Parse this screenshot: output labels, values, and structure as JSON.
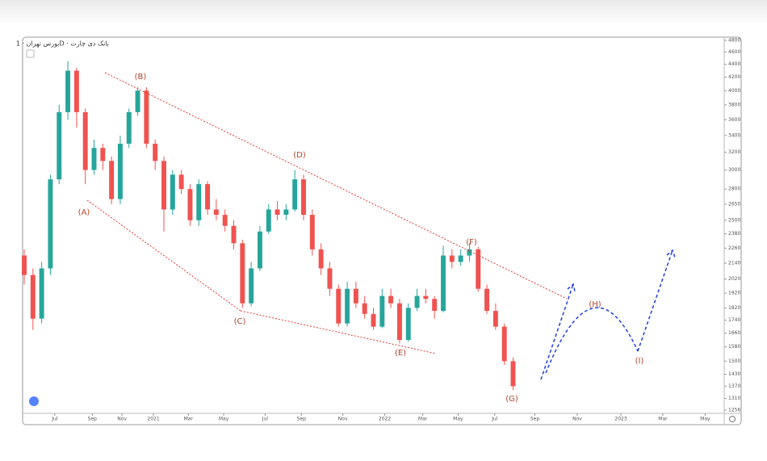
{
  "chart_data": {
    "type": "candlestick",
    "title": "بورس تهران · 1D · بانک دی چارت",
    "log_scale": true,
    "up_color": "#26a69a",
    "down_color": "#ef5350",
    "x": [
      0,
      2,
      4,
      6,
      8,
      10,
      12,
      14,
      16,
      18,
      20,
      22,
      24,
      26,
      28,
      30,
      32,
      34,
      36,
      38,
      40,
      42,
      44,
      46,
      48,
      50,
      52,
      54,
      56,
      58,
      60,
      62,
      64,
      66,
      68,
      70,
      72,
      74,
      76,
      78,
      80,
      82,
      84,
      86,
      88,
      90,
      92,
      94,
      96,
      98,
      100,
      102,
      104,
      106,
      108,
      110,
      112
    ],
    "open": [
      2200,
      2050,
      1750,
      2100,
      2900,
      3700,
      4300,
      3700,
      3000,
      3250,
      3100,
      2700,
      3300,
      3700,
      4000,
      3300,
      3100,
      2600,
      2950,
      2800,
      2500,
      2850,
      2600,
      2550,
      2450,
      2300,
      1850,
      2100,
      2400,
      2600,
      2550,
      2600,
      2900,
      2550,
      2250,
      2100,
      1950,
      1720,
      1950,
      1850,
      1780,
      1700,
      1900,
      1850,
      1620,
      1820,
      1900,
      1880,
      1800,
      2200,
      2150,
      2200,
      2250,
      1950,
      1800,
      1700,
      1500
    ],
    "high": [
      2250,
      2100,
      2150,
      2950,
      3800,
      4450,
      4350,
      3750,
      3350,
      3300,
      3150,
      3400,
      3750,
      4050,
      4050,
      3350,
      3150,
      3000,
      3000,
      2850,
      2900,
      2880,
      2700,
      2600,
      2500,
      2330,
      2150,
      2450,
      2650,
      2680,
      2650,
      3000,
      2950,
      2600,
      2300,
      2150,
      1980,
      2000,
      2000,
      1900,
      1820,
      1950,
      1950,
      1880,
      1850,
      1950,
      1950,
      1900,
      2280,
      2250,
      2250,
      2300,
      2270,
      1980,
      1850,
      1720,
      1520
    ],
    "low": [
      1980,
      1680,
      1720,
      2050,
      2850,
      3600,
      3500,
      2850,
      2950,
      3000,
      2650,
      2650,
      3250,
      3650,
      3250,
      3000,
      2400,
      2550,
      2750,
      2450,
      2450,
      2550,
      2500,
      2400,
      2250,
      1820,
      1830,
      2080,
      2380,
      2500,
      2500,
      2580,
      2500,
      2200,
      2050,
      1900,
      1700,
      1700,
      1820,
      1750,
      1680,
      1690,
      1820,
      1600,
      1610,
      1800,
      1850,
      1750,
      1790,
      2100,
      2120,
      2150,
      1930,
      1780,
      1680,
      1480,
      1350
    ],
    "close": [
      2050,
      1750,
      2100,
      2900,
      3700,
      4300,
      3700,
      3000,
      3250,
      3100,
      2700,
      3300,
      3700,
      4000,
      3300,
      3100,
      2600,
      2950,
      2800,
      2500,
      2850,
      2600,
      2550,
      2450,
      2300,
      1850,
      2100,
      2400,
      2600,
      2550,
      2600,
      2900,
      2550,
      2250,
      2100,
      1950,
      1720,
      1950,
      1850,
      1780,
      1700,
      1900,
      1850,
      1620,
      1820,
      1900,
      1880,
      1800,
      2200,
      2150,
      2200,
      2250,
      1950,
      1800,
      1700,
      1500,
      1370
    ],
    "xlim": [
      0,
      160
    ],
    "xticks": [
      {
        "value": 7,
        "label": "Jul"
      },
      {
        "value": 15.6,
        "label": "Sep"
      },
      {
        "value": 22.4,
        "label": "Nov"
      },
      {
        "value": 29.6,
        "label": "2021"
      },
      {
        "value": 37.6,
        "label": "Mar"
      },
      {
        "value": 45.7,
        "label": "May"
      },
      {
        "value": 55.2,
        "label": "Jul"
      },
      {
        "value": 63.5,
        "label": "Sep"
      },
      {
        "value": 73,
        "label": "Nov"
      },
      {
        "value": 82.6,
        "label": "2022"
      },
      {
        "value": 91.3,
        "label": "Mar"
      },
      {
        "value": 99.4,
        "label": "May"
      },
      {
        "value": 107.8,
        "label": "Jul"
      },
      {
        "value": 117,
        "label": "Sep"
      },
      {
        "value": 126.7,
        "label": "Nov"
      },
      {
        "value": 136.7,
        "label": "2023"
      },
      {
        "value": 146.3,
        "label": "Mar"
      },
      {
        "value": 156,
        "label": "May"
      }
    ],
    "ylim": [
      1256,
      4800
    ],
    "yticks": [
      4800,
      4600,
      4400,
      4200,
      4000,
      3800,
      3600,
      3400,
      3200,
      3000,
      2800,
      2650,
      2500,
      2380,
      2260,
      2140,
      2020,
      1920,
      1820,
      1740,
      1660,
      1580,
      1500,
      1430,
      1370,
      1310,
      1256
    ],
    "annotations": [
      "(A)",
      "(B)",
      "(C)",
      "(D)",
      "(E)",
      "(F)",
      "(G)",
      "(H)",
      "(I)"
    ]
  }
}
